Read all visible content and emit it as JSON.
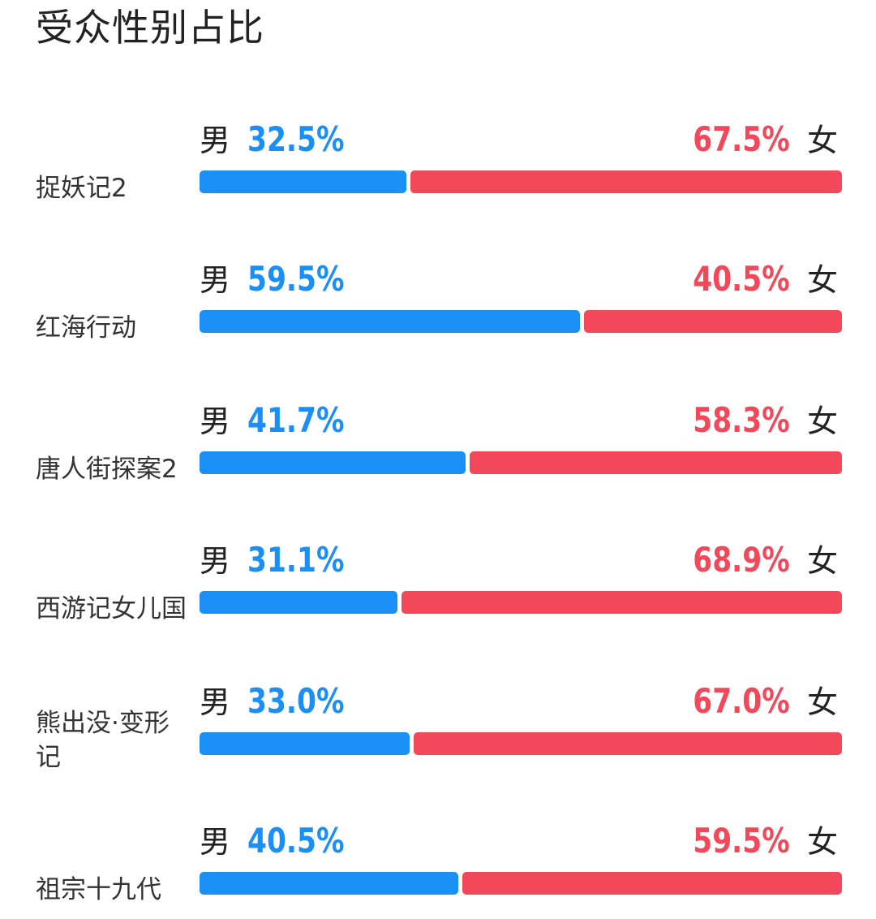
{
  "title": "受众性别占比",
  "labels": {
    "male": "男",
    "female": "女"
  },
  "colors": {
    "male": "#1a8ff5",
    "female": "#f2485a",
    "text": "#222222"
  },
  "chart_data": {
    "type": "bar",
    "stacked": true,
    "orientation": "horizontal",
    "title": "受众性别占比",
    "categories": [
      "捉妖记2",
      "红海行动",
      "唐人街探案2",
      "西游记女儿国",
      "熊出没·变形记",
      "祖宗十九代"
    ],
    "series": [
      {
        "name": "男",
        "values": [
          32.5,
          59.5,
          41.7,
          31.1,
          33.0,
          40.5
        ]
      },
      {
        "name": "女",
        "values": [
          67.5,
          40.5,
          58.3,
          68.9,
          67.0,
          59.5
        ]
      }
    ],
    "value_labels": {
      "male": [
        "32.5%",
        "59.5%",
        "41.7%",
        "31.1%",
        "33.0%",
        "40.5%"
      ],
      "female": [
        "67.5%",
        "40.5%",
        "58.3%",
        "68.9%",
        "67.0%",
        "59.5%"
      ]
    },
    "xlim": [
      0,
      100
    ]
  }
}
